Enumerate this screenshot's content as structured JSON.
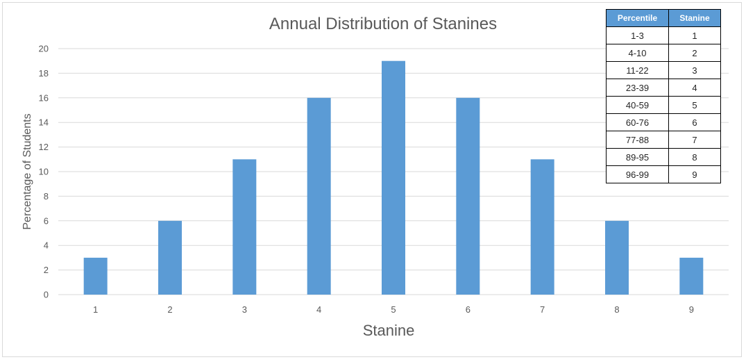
{
  "chart_data": {
    "type": "bar",
    "title": "Annual Distribution of Stanines",
    "xlabel": "Stanine",
    "ylabel": "Percentage of Students",
    "categories": [
      "1",
      "2",
      "3",
      "4",
      "5",
      "6",
      "7",
      "8",
      "9"
    ],
    "values": [
      3,
      6,
      11,
      16,
      19,
      16,
      11,
      6,
      3
    ],
    "ylim": [
      0,
      20
    ],
    "yticks": [
      "0",
      "2",
      "4",
      "6",
      "8",
      "10",
      "12",
      "14",
      "16",
      "18",
      "20"
    ],
    "grid": true,
    "legend": "none",
    "bar_color": "#5b9bd5",
    "gridline_color": "#d9d9d9"
  },
  "lookup_table": {
    "headers": [
      "Percentile",
      "Stanine"
    ],
    "rows": [
      [
        "1-3",
        "1"
      ],
      [
        "4-10",
        "2"
      ],
      [
        "11-22",
        "3"
      ],
      [
        "23-39",
        "4"
      ],
      [
        "40-59",
        "5"
      ],
      [
        "60-76",
        "6"
      ],
      [
        "77-88",
        "7"
      ],
      [
        "89-95",
        "8"
      ],
      [
        "96-99",
        "9"
      ]
    ],
    "header_color": "#5b9bd5"
  }
}
